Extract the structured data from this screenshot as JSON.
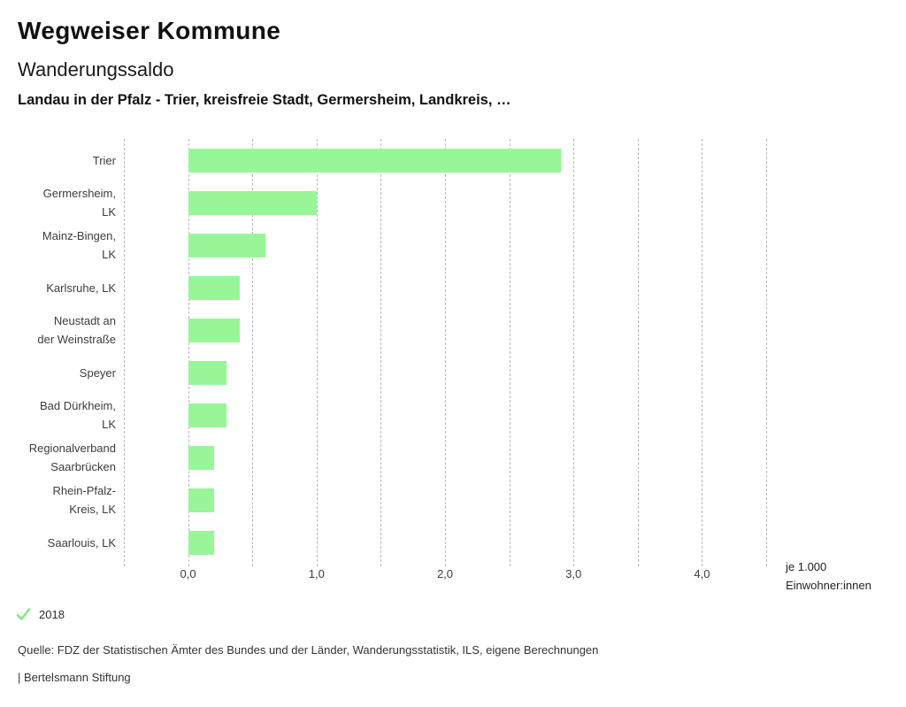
{
  "header": {
    "brand": "Wegweiser Kommune",
    "title": "Wanderungssaldo",
    "subtitle": "Landau in der Pfalz - Trier, kreisfreie Stadt, Germersheim, Landkreis, …"
  },
  "chart_data": {
    "type": "bar",
    "orientation": "horizontal",
    "title": "Wanderungssaldo",
    "categories": [
      "Trier",
      "Germersheim, LK",
      "Mainz-Bingen, LK",
      "Karlsruhe, LK",
      "Neustadt an der Weinstraße",
      "Speyer",
      "Bad Dürkheim, LK",
      "Regionalverband Saarbrücken",
      "Rhein-Pfalz-Kreis, LK",
      "Saarlouis, LK"
    ],
    "category_lines": [
      [
        "Trier"
      ],
      [
        "Germersheim,",
        "LK"
      ],
      [
        "Mainz-Bingen,",
        "LK"
      ],
      [
        "Karlsruhe, LK"
      ],
      [
        "Neustadt an",
        "der Weinstraße"
      ],
      [
        "Speyer"
      ],
      [
        "Bad Dürkheim,",
        "LK"
      ],
      [
        "Regionalverband",
        "Saarbrücken"
      ],
      [
        "Rhein-Pfalz-",
        "Kreis, LK"
      ],
      [
        "Saarlouis, LK"
      ]
    ],
    "series": [
      {
        "name": "2018",
        "values": [
          2.9,
          1.0,
          0.6,
          0.4,
          0.4,
          0.3,
          0.3,
          0.2,
          0.2,
          0.2
        ],
        "color": "#98f698"
      }
    ],
    "xlim": [
      -0.5,
      4.5
    ],
    "grid_step": 0.5,
    "grid": true,
    "x_ticks": [
      {
        "value": 0,
        "label": "0,0"
      },
      {
        "value": 1,
        "label": "1,0"
      },
      {
        "value": 2,
        "label": "2,0"
      },
      {
        "value": 3,
        "label": "3,0"
      },
      {
        "value": 4,
        "label": "4,0"
      }
    ],
    "unit_label_lines": [
      "je 1.000",
      "Einwohner:innen"
    ],
    "legend_position": "bottom-left"
  },
  "legend": {
    "items": [
      {
        "label": "2018",
        "marker": "check-icon",
        "color": "#84e884"
      }
    ]
  },
  "footer": {
    "source": "Quelle: FDZ der Statistischen Ämter des Bundes und der Länder, Wanderungsstatistik, ILS, eigene Berechnungen",
    "attribution": "| Bertelsmann Stiftung"
  }
}
